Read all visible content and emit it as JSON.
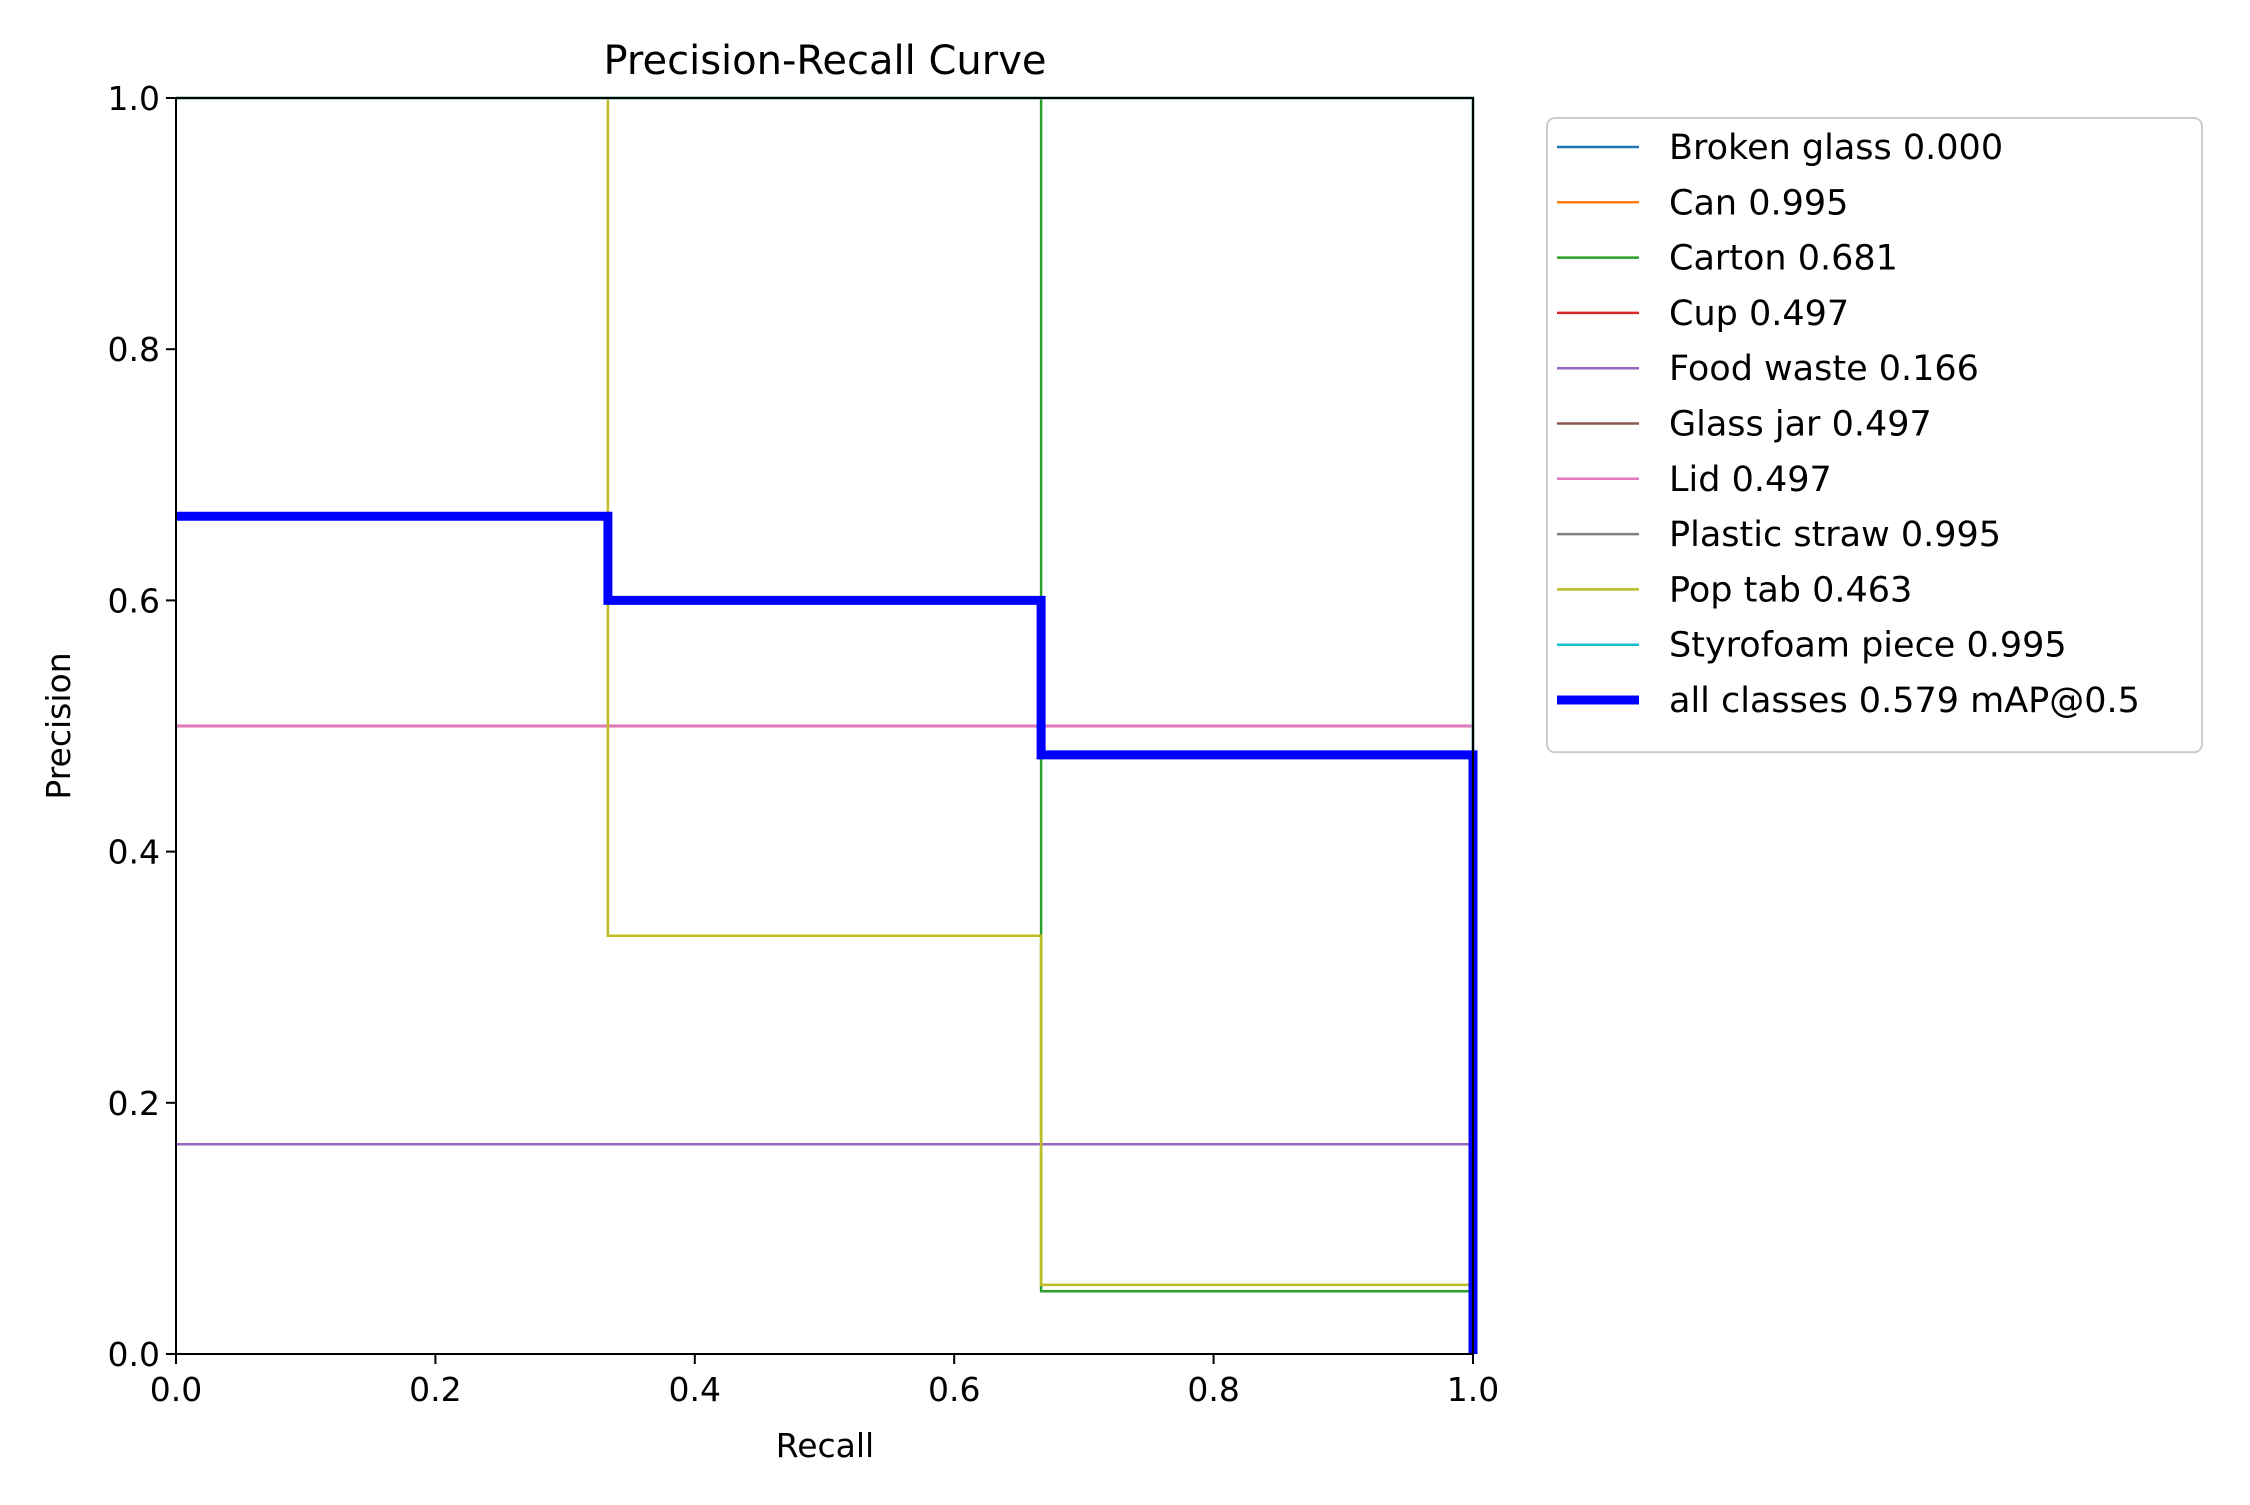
{
  "chart_data": {
    "type": "line",
    "title": "Precision-Recall Curve",
    "xlabel": "Recall",
    "ylabel": "Precision",
    "xlim": [
      0,
      1
    ],
    "ylim": [
      0,
      1
    ],
    "xticks": [
      "0.0",
      "0.2",
      "0.4",
      "0.6",
      "0.8",
      "1.0"
    ],
    "yticks": [
      "0.0",
      "0.2",
      "0.4",
      "0.6",
      "0.8",
      "1.0"
    ],
    "grid": false,
    "legend_position": "outside-right",
    "series": [
      {
        "name": "Broken glass 0.000",
        "color": "#1f77b4",
        "thick": false,
        "points": []
      },
      {
        "name": "Can 0.995",
        "color": "#ff7f0e",
        "thick": false,
        "points": [
          [
            0,
            1.0
          ],
          [
            1.0,
            1.0
          ],
          [
            1.0,
            0.0
          ]
        ]
      },
      {
        "name": "Carton 0.681",
        "color": "#2ca02c",
        "thick": false,
        "points": [
          [
            0,
            1.0
          ],
          [
            0.667,
            1.0
          ],
          [
            0.667,
            0.05
          ],
          [
            1.0,
            0.05
          ],
          [
            1.0,
            0.0
          ]
        ]
      },
      {
        "name": "Cup 0.497",
        "color": "#d62728",
        "thick": false,
        "points": [
          [
            0,
            0.5
          ],
          [
            1.0,
            0.5
          ],
          [
            1.0,
            0.0
          ]
        ]
      },
      {
        "name": "Food waste 0.166",
        "color": "#9467bd",
        "thick": false,
        "points": [
          [
            0,
            0.167
          ],
          [
            1.0,
            0.167
          ],
          [
            1.0,
            0.0
          ]
        ]
      },
      {
        "name": "Glass jar 0.497",
        "color": "#8c564b",
        "thick": false,
        "points": [
          [
            0,
            0.5
          ],
          [
            1.0,
            0.5
          ],
          [
            1.0,
            0.0
          ]
        ]
      },
      {
        "name": "Lid 0.497",
        "color": "#e377c2",
        "thick": false,
        "points": [
          [
            0,
            0.5
          ],
          [
            1.0,
            0.5
          ],
          [
            1.0,
            0.0
          ]
        ]
      },
      {
        "name": "Plastic straw 0.995",
        "color": "#7f7f7f",
        "thick": false,
        "points": [
          [
            0,
            1.0
          ],
          [
            1.0,
            1.0
          ],
          [
            1.0,
            0.0
          ]
        ]
      },
      {
        "name": "Pop tab 0.463",
        "color": "#bcbd22",
        "thick": false,
        "points": [
          [
            0,
            1.0
          ],
          [
            0.333,
            1.0
          ],
          [
            0.333,
            0.333
          ],
          [
            0.667,
            0.333
          ],
          [
            0.667,
            0.055
          ],
          [
            1.0,
            0.055
          ],
          [
            1.0,
            0.0
          ]
        ]
      },
      {
        "name": "Styrofoam piece 0.995",
        "color": "#17becf",
        "thick": false,
        "points": [
          [
            0,
            1.0
          ],
          [
            1.0,
            1.0
          ],
          [
            1.0,
            0.0
          ]
        ]
      },
      {
        "name": "all classes 0.579 mAP@0.5",
        "color": "#0000ff",
        "thick": true,
        "points": [
          [
            0,
            0.667
          ],
          [
            0.333,
            0.667
          ],
          [
            0.333,
            0.6
          ],
          [
            0.667,
            0.6
          ],
          [
            0.667,
            0.477
          ],
          [
            1.0,
            0.477
          ],
          [
            1.0,
            0.0
          ]
        ]
      }
    ]
  }
}
